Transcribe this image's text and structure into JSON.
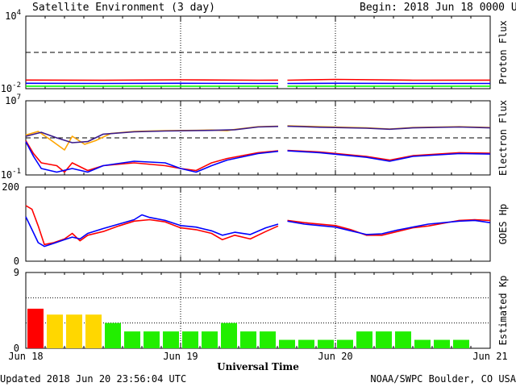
{
  "header": {
    "title": "Satellite Environment (3 day)",
    "begin_label": "Begin:  2018 Jun 18 0000 UTC"
  },
  "footer": {
    "updated": "Updated 2018 Jun 20 23:56:04 UTC",
    "credit": "NOAA/SWPC Boulder, CO USA"
  },
  "colors": {
    "red": "#ff0000",
    "blue": "#0000ff",
    "green": "#00ff00",
    "orange": "#ffa500",
    "purple": "#3a1a8a",
    "kp_red": "#ff0000",
    "kp_yellow": "#ffd700",
    "kp_green": "#22ee00"
  },
  "chart_data": [
    {
      "id": "proton",
      "type": "line",
      "ylabel": "Proton Flux",
      "yscale": "log",
      "ylim": [
        0.01,
        10000
      ],
      "yticks": [
        {
          "base": "10",
          "exp": "4"
        },
        {
          "base": "10",
          "exp": "-2"
        }
      ],
      "threshold": 10,
      "x_range_days": [
        0,
        3
      ],
      "gap_days": [
        1.63,
        1.69
      ],
      "series": [
        {
          "color_key": "red",
          "points": [
            [
              0.0,
              0.052
            ],
            [
              0.5,
              0.05
            ],
            [
              1.0,
              0.054
            ],
            [
              1.5,
              0.05
            ],
            [
              1.63,
              0.051
            ],
            [
              1.69,
              0.05
            ],
            [
              2.0,
              0.058
            ],
            [
              2.5,
              0.05
            ],
            [
              3.0,
              0.051
            ]
          ]
        },
        {
          "color_key": "blue",
          "points": [
            [
              0.0,
              0.028
            ],
            [
              0.5,
              0.027
            ],
            [
              1.0,
              0.028
            ],
            [
              1.5,
              0.027
            ],
            [
              1.63,
              0.027
            ],
            [
              1.69,
              0.027
            ],
            [
              2.0,
              0.028
            ],
            [
              2.5,
              0.027
            ],
            [
              3.0,
              0.027
            ]
          ]
        },
        {
          "color_key": "green",
          "points": [
            [
              0.0,
              0.016
            ],
            [
              0.5,
              0.016
            ],
            [
              1.0,
              0.016
            ],
            [
              1.5,
              0.016
            ],
            [
              1.63,
              0.016
            ],
            [
              1.69,
              0.016
            ],
            [
              2.0,
              0.016
            ],
            [
              2.5,
              0.016
            ],
            [
              3.0,
              0.016
            ]
          ]
        }
      ]
    },
    {
      "id": "electron",
      "type": "line",
      "ylabel": "Electron Flux",
      "yscale": "log",
      "ylim": [
        0.1,
        10000000
      ],
      "yticks": [
        {
          "base": "10",
          "exp": "7"
        },
        {
          "base": "10",
          "exp": "-1"
        }
      ],
      "threshold": 1000,
      "x_range_days": [
        0,
        3
      ],
      "gap_days": [
        1.63,
        1.69
      ],
      "series": [
        {
          "color_key": "orange",
          "points": [
            [
              0.0,
              2000
            ],
            [
              0.08,
              5000
            ],
            [
              0.15,
              800
            ],
            [
              0.25,
              50
            ],
            [
              0.3,
              1500
            ],
            [
              0.38,
              200
            ],
            [
              0.45,
              500
            ],
            [
              0.55,
              3000
            ],
            [
              0.7,
              5000
            ],
            [
              0.9,
              6000
            ],
            [
              1.1,
              6500
            ],
            [
              1.2,
              7000
            ],
            [
              1.3,
              6000
            ],
            [
              1.35,
              8000
            ],
            [
              1.5,
              16000
            ],
            [
              1.63,
              18000
            ],
            [
              1.69,
              20000
            ],
            [
              1.9,
              16000
            ],
            [
              2.2,
              12000
            ],
            [
              2.35,
              9000
            ],
            [
              2.5,
              13000
            ],
            [
              2.8,
              16000
            ],
            [
              3.0,
              13000
            ]
          ]
        },
        {
          "color_key": "purple",
          "points": [
            [
              0.0,
              1500
            ],
            [
              0.1,
              4000
            ],
            [
              0.2,
              1000
            ],
            [
              0.3,
              300
            ],
            [
              0.4,
              400
            ],
            [
              0.5,
              2500
            ],
            [
              0.7,
              4500
            ],
            [
              0.9,
              5500
            ],
            [
              1.2,
              6500
            ],
            [
              1.35,
              7500
            ],
            [
              1.5,
              15000
            ],
            [
              1.63,
              17000
            ],
            [
              1.69,
              18000
            ],
            [
              1.9,
              14000
            ],
            [
              2.2,
              11000
            ],
            [
              2.35,
              8500
            ],
            [
              2.5,
              12000
            ],
            [
              2.8,
              15000
            ],
            [
              3.0,
              12000
            ]
          ]
        },
        {
          "color_key": "red",
          "points": [
            [
              0.0,
              500
            ],
            [
              0.05,
              20
            ],
            [
              0.1,
              2
            ],
            [
              0.2,
              1
            ],
            [
              0.25,
              0.2
            ],
            [
              0.3,
              2
            ],
            [
              0.4,
              0.3
            ],
            [
              0.5,
              1
            ],
            [
              0.7,
              2
            ],
            [
              0.9,
              1
            ],
            [
              1.0,
              0.5
            ],
            [
              1.1,
              0.3
            ],
            [
              1.2,
              2
            ],
            [
              1.3,
              6
            ],
            [
              1.5,
              25
            ],
            [
              1.63,
              40
            ],
            [
              1.69,
              45
            ],
            [
              1.9,
              30
            ],
            [
              2.2,
              10
            ],
            [
              2.35,
              4
            ],
            [
              2.5,
              12
            ],
            [
              2.8,
              25
            ],
            [
              3.0,
              22
            ]
          ]
        },
        {
          "color_key": "blue",
          "points": [
            [
              0.0,
              400
            ],
            [
              0.05,
              10
            ],
            [
              0.1,
              0.5
            ],
            [
              0.2,
              0.2
            ],
            [
              0.3,
              0.5
            ],
            [
              0.4,
              0.2
            ],
            [
              0.5,
              1
            ],
            [
              0.7,
              3
            ],
            [
              0.9,
              2
            ],
            [
              1.0,
              0.5
            ],
            [
              1.1,
              0.2
            ],
            [
              1.2,
              1
            ],
            [
              1.3,
              4
            ],
            [
              1.5,
              20
            ],
            [
              1.63,
              35
            ],
            [
              1.69,
              40
            ],
            [
              1.9,
              25
            ],
            [
              2.2,
              8
            ],
            [
              2.35,
              3
            ],
            [
              2.5,
              10
            ],
            [
              2.8,
              20
            ],
            [
              3.0,
              18
            ]
          ]
        }
      ]
    },
    {
      "id": "hp",
      "type": "line",
      "ylabel": "GOES Hp",
      "yscale": "linear",
      "ylim": [
        0,
        200
      ],
      "yticks": [
        {
          "label": "200",
          "value": 200
        },
        {
          "label": "0",
          "value": 0
        }
      ],
      "x_range_days": [
        0,
        3
      ],
      "gap_days": [
        1.63,
        1.69
      ],
      "series": [
        {
          "color_key": "red",
          "points": [
            [
              0.0,
              150
            ],
            [
              0.04,
              140
            ],
            [
              0.08,
              95
            ],
            [
              0.12,
              45
            ],
            [
              0.18,
              50
            ],
            [
              0.25,
              60
            ],
            [
              0.3,
              75
            ],
            [
              0.35,
              55
            ],
            [
              0.4,
              70
            ],
            [
              0.5,
              80
            ],
            [
              0.6,
              95
            ],
            [
              0.7,
              108
            ],
            [
              0.8,
              112
            ],
            [
              0.9,
              106
            ],
            [
              1.0,
              90
            ],
            [
              1.1,
              85
            ],
            [
              1.2,
              75
            ],
            [
              1.27,
              58
            ],
            [
              1.35,
              70
            ],
            [
              1.45,
              60
            ],
            [
              1.55,
              80
            ],
            [
              1.63,
              95
            ],
            [
              1.69,
              110
            ],
            [
              1.8,
              104
            ],
            [
              2.0,
              96
            ],
            [
              2.1,
              85
            ],
            [
              2.2,
              70
            ],
            [
              2.3,
              70
            ],
            [
              2.4,
              80
            ],
            [
              2.5,
              90
            ],
            [
              2.6,
              95
            ],
            [
              2.8,
              110
            ],
            [
              2.9,
              112
            ],
            [
              3.0,
              110
            ]
          ]
        },
        {
          "color_key": "blue",
          "points": [
            [
              0.0,
              120
            ],
            [
              0.04,
              85
            ],
            [
              0.08,
              50
            ],
            [
              0.12,
              40
            ],
            [
              0.18,
              48
            ],
            [
              0.25,
              58
            ],
            [
              0.3,
              65
            ],
            [
              0.35,
              60
            ],
            [
              0.4,
              75
            ],
            [
              0.5,
              88
            ],
            [
              0.6,
              100
            ],
            [
              0.7,
              112
            ],
            [
              0.75,
              125
            ],
            [
              0.8,
              118
            ],
            [
              0.9,
              110
            ],
            [
              1.0,
              96
            ],
            [
              1.1,
              92
            ],
            [
              1.2,
              82
            ],
            [
              1.27,
              70
            ],
            [
              1.35,
              78
            ],
            [
              1.45,
              72
            ],
            [
              1.55,
              90
            ],
            [
              1.63,
              100
            ],
            [
              1.69,
              108
            ],
            [
              1.8,
              100
            ],
            [
              2.0,
              92
            ],
            [
              2.1,
              82
            ],
            [
              2.2,
              72
            ],
            [
              2.3,
              74
            ],
            [
              2.4,
              84
            ],
            [
              2.5,
              92
            ],
            [
              2.6,
              100
            ],
            [
              2.8,
              108
            ],
            [
              2.9,
              110
            ],
            [
              3.0,
              104
            ]
          ]
        }
      ]
    },
    {
      "id": "kp",
      "type": "bar",
      "ylabel": "Estimated Kp",
      "ylim": [
        0,
        9
      ],
      "yticks": [
        {
          "label": "9",
          "value": 9
        },
        {
          "label": "0",
          "value": 0
        }
      ],
      "grid_y": [
        3,
        6,
        9
      ],
      "bar_width_hours": 3,
      "values": [
        4.7,
        4,
        4,
        4,
        3,
        2,
        2,
        2,
        2,
        2,
        3,
        2,
        2,
        1,
        1,
        1,
        1,
        2,
        2,
        2,
        1,
        1,
        1,
        0
      ],
      "color_keys": [
        "kp_red",
        "kp_yellow",
        "kp_yellow",
        "kp_yellow",
        "kp_green",
        "kp_green",
        "kp_green",
        "kp_green",
        "kp_green",
        "kp_green",
        "kp_green",
        "kp_green",
        "kp_green",
        "kp_green",
        "kp_green",
        "kp_green",
        "kp_green",
        "kp_green",
        "kp_green",
        "kp_green",
        "kp_green",
        "kp_green",
        "kp_green",
        "kp_green"
      ]
    }
  ],
  "x_axis": {
    "xlabel": "Universal Time",
    "ticks": [
      "Jun 18",
      "Jun 19",
      "Jun 20",
      "Jun 21"
    ]
  }
}
